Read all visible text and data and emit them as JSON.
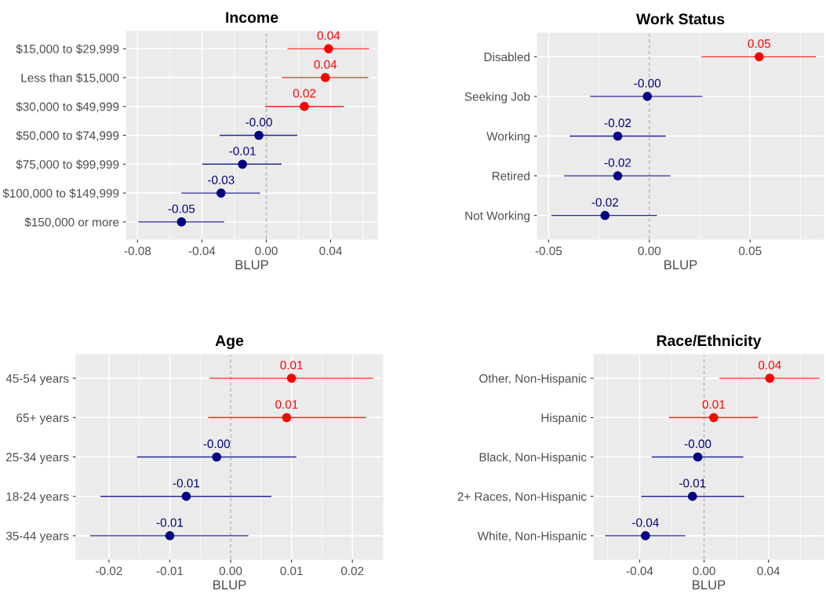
{
  "chart_data": [
    {
      "type": "scatter",
      "orientation": "horizontal",
      "title": "Income",
      "xlabel": "BLUP",
      "marker": "circle",
      "grid": true,
      "categories": [
        "$15,000 to $29,999",
        "Less than $15,000",
        "$30,000 to $49,999",
        "$50,000 to $74,999",
        "$75,000 to $99,999",
        "$100,000 to $149,999",
        "$150,000 or more"
      ],
      "values": [
        0.0387,
        0.0367,
        0.0237,
        -0.0046,
        -0.0148,
        -0.0281,
        -0.0527
      ],
      "errors": [
        [
          0.0132,
          0.064
        ],
        [
          0.0097,
          0.0634
        ],
        [
          -0.0007,
          0.0482
        ],
        [
          -0.029,
          0.0193
        ],
        [
          -0.0398,
          0.0095
        ],
        [
          -0.0527,
          -0.0038
        ],
        [
          -0.0795,
          -0.0262
        ]
      ],
      "value_labels": [
        "0.04",
        "0.04",
        "0.02",
        "-0.00",
        "-0.01",
        "-0.03",
        "-0.05"
      ],
      "colors": [
        "#ff0000",
        "#ff0000",
        "#ff0000",
        "#000080",
        "#000080",
        "#000080",
        "#000080"
      ],
      "xlim": [
        -0.087,
        0.069
      ],
      "xticks": [
        {
          "value": -0.08,
          "label": "-0.08"
        },
        {
          "value": -0.04,
          "label": "-0.04"
        },
        {
          "value": 0,
          "label": "0.00"
        },
        {
          "value": 0.04,
          "label": "0.04"
        }
      ],
      "ref_lines": [
        {
          "axis": "x",
          "value": 0,
          "color": "#b3b3b3",
          "line_style": "dashed"
        }
      ]
    },
    {
      "type": "scatter",
      "orientation": "horizontal",
      "title": "Work Status",
      "xlabel": "BLUP",
      "marker": "circle",
      "grid": true,
      "categories": [
        "Disabled",
        "Seeking Job",
        "Working",
        "Retired",
        "Not Working"
      ],
      "values": [
        0.0545,
        -0.001,
        -0.0157,
        -0.0157,
        -0.022
      ],
      "errors": [
        [
          0.0259,
          0.0827
        ],
        [
          -0.0294,
          0.0263
        ],
        [
          -0.0395,
          0.0081
        ],
        [
          -0.0423,
          0.0105
        ],
        [
          -0.0486,
          0.0038
        ]
      ],
      "value_labels": [
        "0.05",
        "-0.00",
        "-0.02",
        "-0.02",
        "-0.02"
      ],
      "colors": [
        "#ff0000",
        "#000080",
        "#000080",
        "#000080",
        "#000080"
      ],
      "xlim": [
        -0.0556,
        0.0865
      ],
      "xticks": [
        {
          "value": -0.05,
          "label": "-0.05"
        },
        {
          "value": 0,
          "label": "0.00"
        },
        {
          "value": 0.05,
          "label": "0.05"
        }
      ],
      "ref_lines": [
        {
          "axis": "x",
          "value": 0,
          "color": "#b3b3b3",
          "line_style": "dashed"
        }
      ]
    },
    {
      "type": "scatter",
      "orientation": "horizontal",
      "title": "Age",
      "xlabel": "BLUP",
      "marker": "circle",
      "grid": true,
      "categories": [
        "45-54 years",
        "65+ years",
        "25-34 years",
        "18-24 years",
        "35-44 years"
      ],
      "values": [
        0.01,
        0.0092,
        -0.0023,
        -0.0073,
        -0.01
      ],
      "errors": [
        [
          -0.0035,
          0.0234
        ],
        [
          -0.0037,
          0.0222
        ],
        [
          -0.0154,
          0.0108
        ],
        [
          -0.0214,
          0.0067
        ],
        [
          -0.0231,
          0.0029
        ]
      ],
      "value_labels": [
        "0.01",
        "0.01",
        "-0.00",
        "-0.01",
        "-0.01"
      ],
      "colors": [
        "#ff0000",
        "#ff0000",
        "#000080",
        "#000080",
        "#000080"
      ],
      "xlim": [
        -0.0254,
        0.025
      ],
      "xticks": [
        {
          "value": -0.02,
          "label": "-0.02"
        },
        {
          "value": -0.01,
          "label": "-0.01"
        },
        {
          "value": 0,
          "label": "0.00"
        },
        {
          "value": 0.01,
          "label": "0.01"
        },
        {
          "value": 0.02,
          "label": "0.02"
        }
      ],
      "ref_lines": [
        {
          "axis": "x",
          "value": 0,
          "color": "#b3b3b3",
          "line_style": "dashed"
        }
      ]
    },
    {
      "type": "scatter",
      "orientation": "horizontal",
      "title": "Race/Ethnicity",
      "xlabel": "BLUP",
      "marker": "circle",
      "grid": true,
      "categories": [
        "Other, Non-Hispanic",
        "Hispanic",
        "Black, Non-Hispanic",
        "2+ Races, Non-Hispanic",
        "White, Non-Hispanic"
      ],
      "values": [
        0.0408,
        0.006,
        -0.0039,
        -0.0072,
        -0.0364
      ],
      "errors": [
        [
          0.0096,
          0.0717
        ],
        [
          -0.0218,
          0.0335
        ],
        [
          -0.0325,
          0.0244
        ],
        [
          -0.039,
          0.0249
        ],
        [
          -0.0615,
          -0.0117
        ]
      ],
      "value_labels": [
        "0.04",
        "0.01",
        "-0.00",
        "-0.01",
        "-0.04"
      ],
      "colors": [
        "#ff0000",
        "#ff0000",
        "#000080",
        "#000080",
        "#000080"
      ],
      "xlim": [
        -0.0685,
        0.0743
      ],
      "xticks": [
        {
          "value": -0.04,
          "label": "-0.04"
        },
        {
          "value": 0,
          "label": "0.00"
        },
        {
          "value": 0.04,
          "label": "0.04"
        }
      ],
      "ref_lines": [
        {
          "axis": "x",
          "value": 0,
          "color": "#b3b3b3",
          "line_style": "dashed"
        }
      ]
    }
  ]
}
